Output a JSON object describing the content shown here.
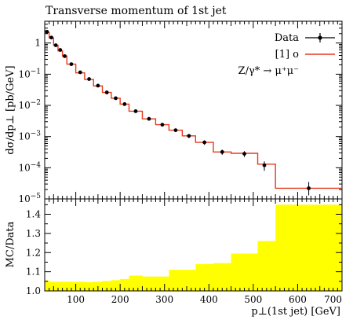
{
  "chart_data": [
    {
      "type": "line",
      "title": "Transverse momentum of 1st jet",
      "ylabel": "dσ/dp⊥ [pb/GeV]",
      "yscale": "log",
      "ylim": [
        1e-05,
        5
      ],
      "xlim": [
        30,
        700
      ],
      "ytick_mantissa": "10",
      "yticks": [
        {
          "value": 1,
          "label": "1"
        },
        {
          "value": 0.1,
          "label": "10",
          "exp": "−1"
        },
        {
          "value": 0.01,
          "label": "10",
          "exp": "−2"
        },
        {
          "value": 0.001,
          "label": "10",
          "exp": "−3"
        },
        {
          "value": 0.0001,
          "label": "10",
          "exp": "−4"
        },
        {
          "value": 1e-05,
          "label": "10",
          "exp": "−5"
        }
      ],
      "annotation": "Z/γ* → μ⁺μ⁻",
      "legend": "top-right",
      "series": [
        {
          "name": "Data",
          "style": "points",
          "color": "#000000",
          "x": [
            35,
            45,
            55,
            65,
            75,
            90,
            110,
            130,
            150,
            170,
            190,
            210,
            235,
            265,
            295,
            325,
            355,
            390,
            430,
            480,
            525,
            625
          ],
          "y": [
            2.3,
            1.5,
            0.85,
            0.6,
            0.38,
            0.21,
            0.115,
            0.07,
            0.043,
            0.026,
            0.017,
            0.011,
            0.0065,
            0.0037,
            0.0024,
            0.0016,
            0.00105,
            0.00065,
            0.00032,
            0.00028,
            0.00012,
            2.2e-05
          ],
          "yerr_low": [
            2.15,
            1.42,
            0.8,
            0.565,
            0.358,
            0.197,
            0.107,
            0.065,
            0.04,
            0.024,
            0.0156,
            0.01,
            0.0059,
            0.0033,
            0.00212,
            0.00139,
            0.00089,
            0.00054,
            0.00026,
            0.00022,
            8e-05,
            1.3e-05
          ],
          "yerr_high": [
            2.45,
            1.58,
            0.9,
            0.635,
            0.402,
            0.223,
            0.123,
            0.075,
            0.046,
            0.028,
            0.0184,
            0.012,
            0.0071,
            0.0041,
            0.00268,
            0.00181,
            0.00121,
            0.00076,
            0.00038,
            0.00034,
            0.00016,
            3.5e-05
          ]
        },
        {
          "name": "[1] o",
          "style": "histogram",
          "color": "#e8391e",
          "edges": [
            30,
            40,
            50,
            60,
            70,
            80,
            100,
            120,
            140,
            160,
            180,
            200,
            220,
            250,
            280,
            310,
            340,
            370,
            410,
            450,
            510,
            550,
            700
          ],
          "y": [
            2.2,
            1.45,
            0.85,
            0.56,
            0.38,
            0.21,
            0.11,
            0.068,
            0.042,
            0.026,
            0.017,
            0.011,
            0.0065,
            0.0037,
            0.0024,
            0.0016,
            0.00105,
            0.00065,
            0.00032,
            0.00029,
            0.00013,
            2.2e-05
          ]
        }
      ]
    },
    {
      "type": "area",
      "ylabel": "MC/Data",
      "xlabel": "p⊥(1st jet) [GeV]",
      "xlim": [
        30,
        700
      ],
      "ylim": [
        1.0,
        1.48
      ],
      "xticks": [
        100,
        200,
        300,
        400,
        500,
        600,
        700
      ],
      "yticks": [
        1.0,
        1.1,
        1.2,
        1.3,
        1.4
      ],
      "series": [
        {
          "style": "band",
          "color": "#ffff00",
          "edges": [
            30,
            40,
            50,
            60,
            70,
            80,
            100,
            120,
            140,
            160,
            180,
            200,
            220,
            250,
            280,
            310,
            340,
            370,
            410,
            450,
            510,
            550,
            700
          ],
          "y": [
            1.055,
            1.048,
            1.048,
            1.048,
            1.048,
            1.048,
            1.048,
            1.046,
            1.048,
            1.052,
            1.056,
            1.062,
            1.08,
            1.075,
            1.075,
            1.11,
            1.11,
            1.14,
            1.145,
            1.195,
            1.26,
            1.45
          ]
        }
      ]
    }
  ]
}
